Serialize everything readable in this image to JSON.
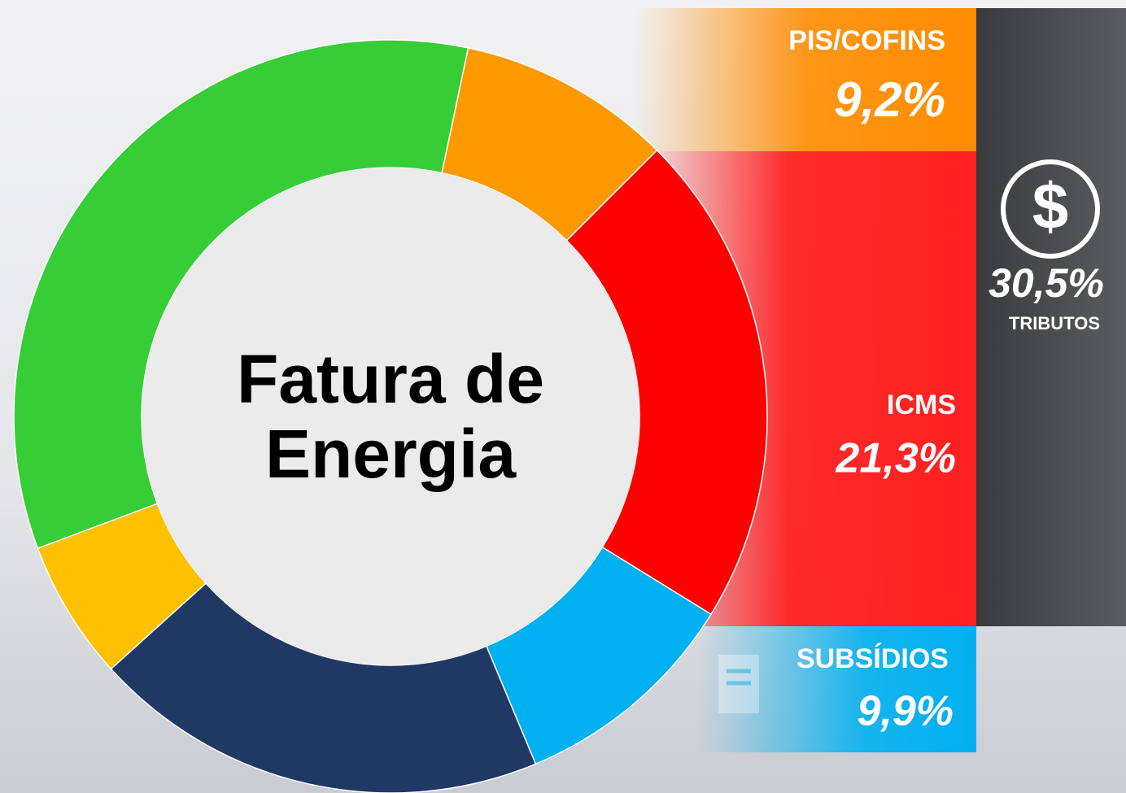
{
  "chart_data": {
    "type": "donut",
    "title": "Fatura de Energia",
    "categories": [
      "PIS/COFINS",
      "ICMS",
      "SUBSÍDIOS",
      null,
      null,
      null
    ],
    "values": [
      9.2,
      21.3,
      9.9,
      19.6,
      6.0,
      34.0
    ],
    "value_labels": [
      "9,2%",
      "21,3%",
      "9,9%",
      null,
      null,
      null
    ],
    "colors": [
      "#ff9900",
      "#ff0000",
      "#00b0f0",
      "#203864",
      "#ffc000",
      "#37cd37"
    ],
    "annotations": {
      "total_label": "30,5%",
      "total_name": "TRIBUTOS"
    }
  }
}
